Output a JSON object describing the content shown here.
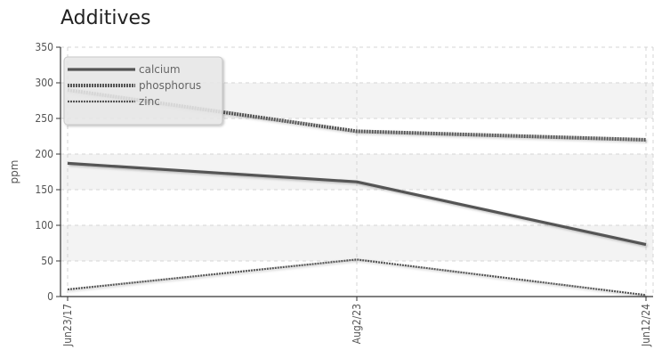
{
  "chart_data": {
    "type": "line",
    "title": "Additives",
    "ylabel": "ppm",
    "xlabel": "",
    "categories": [
      "Jun23/17",
      "Aug2/23",
      "Jun12/24"
    ],
    "ylim": [
      0,
      350
    ],
    "yticks": [
      0,
      50,
      100,
      150,
      200,
      250,
      300,
      350
    ],
    "grid": true,
    "legend_position": "top-left",
    "series": [
      {
        "name": "calcium",
        "values": [
          187,
          161,
          73
        ],
        "style": "solid",
        "color": "#555555"
      },
      {
        "name": "phosphorus",
        "values": [
          290,
          232,
          220
        ],
        "style": "dotted-thick",
        "color": "#555555"
      },
      {
        "name": "zinc",
        "values": [
          10,
          52,
          2
        ],
        "style": "dotted-thin",
        "color": "#555555"
      }
    ]
  }
}
